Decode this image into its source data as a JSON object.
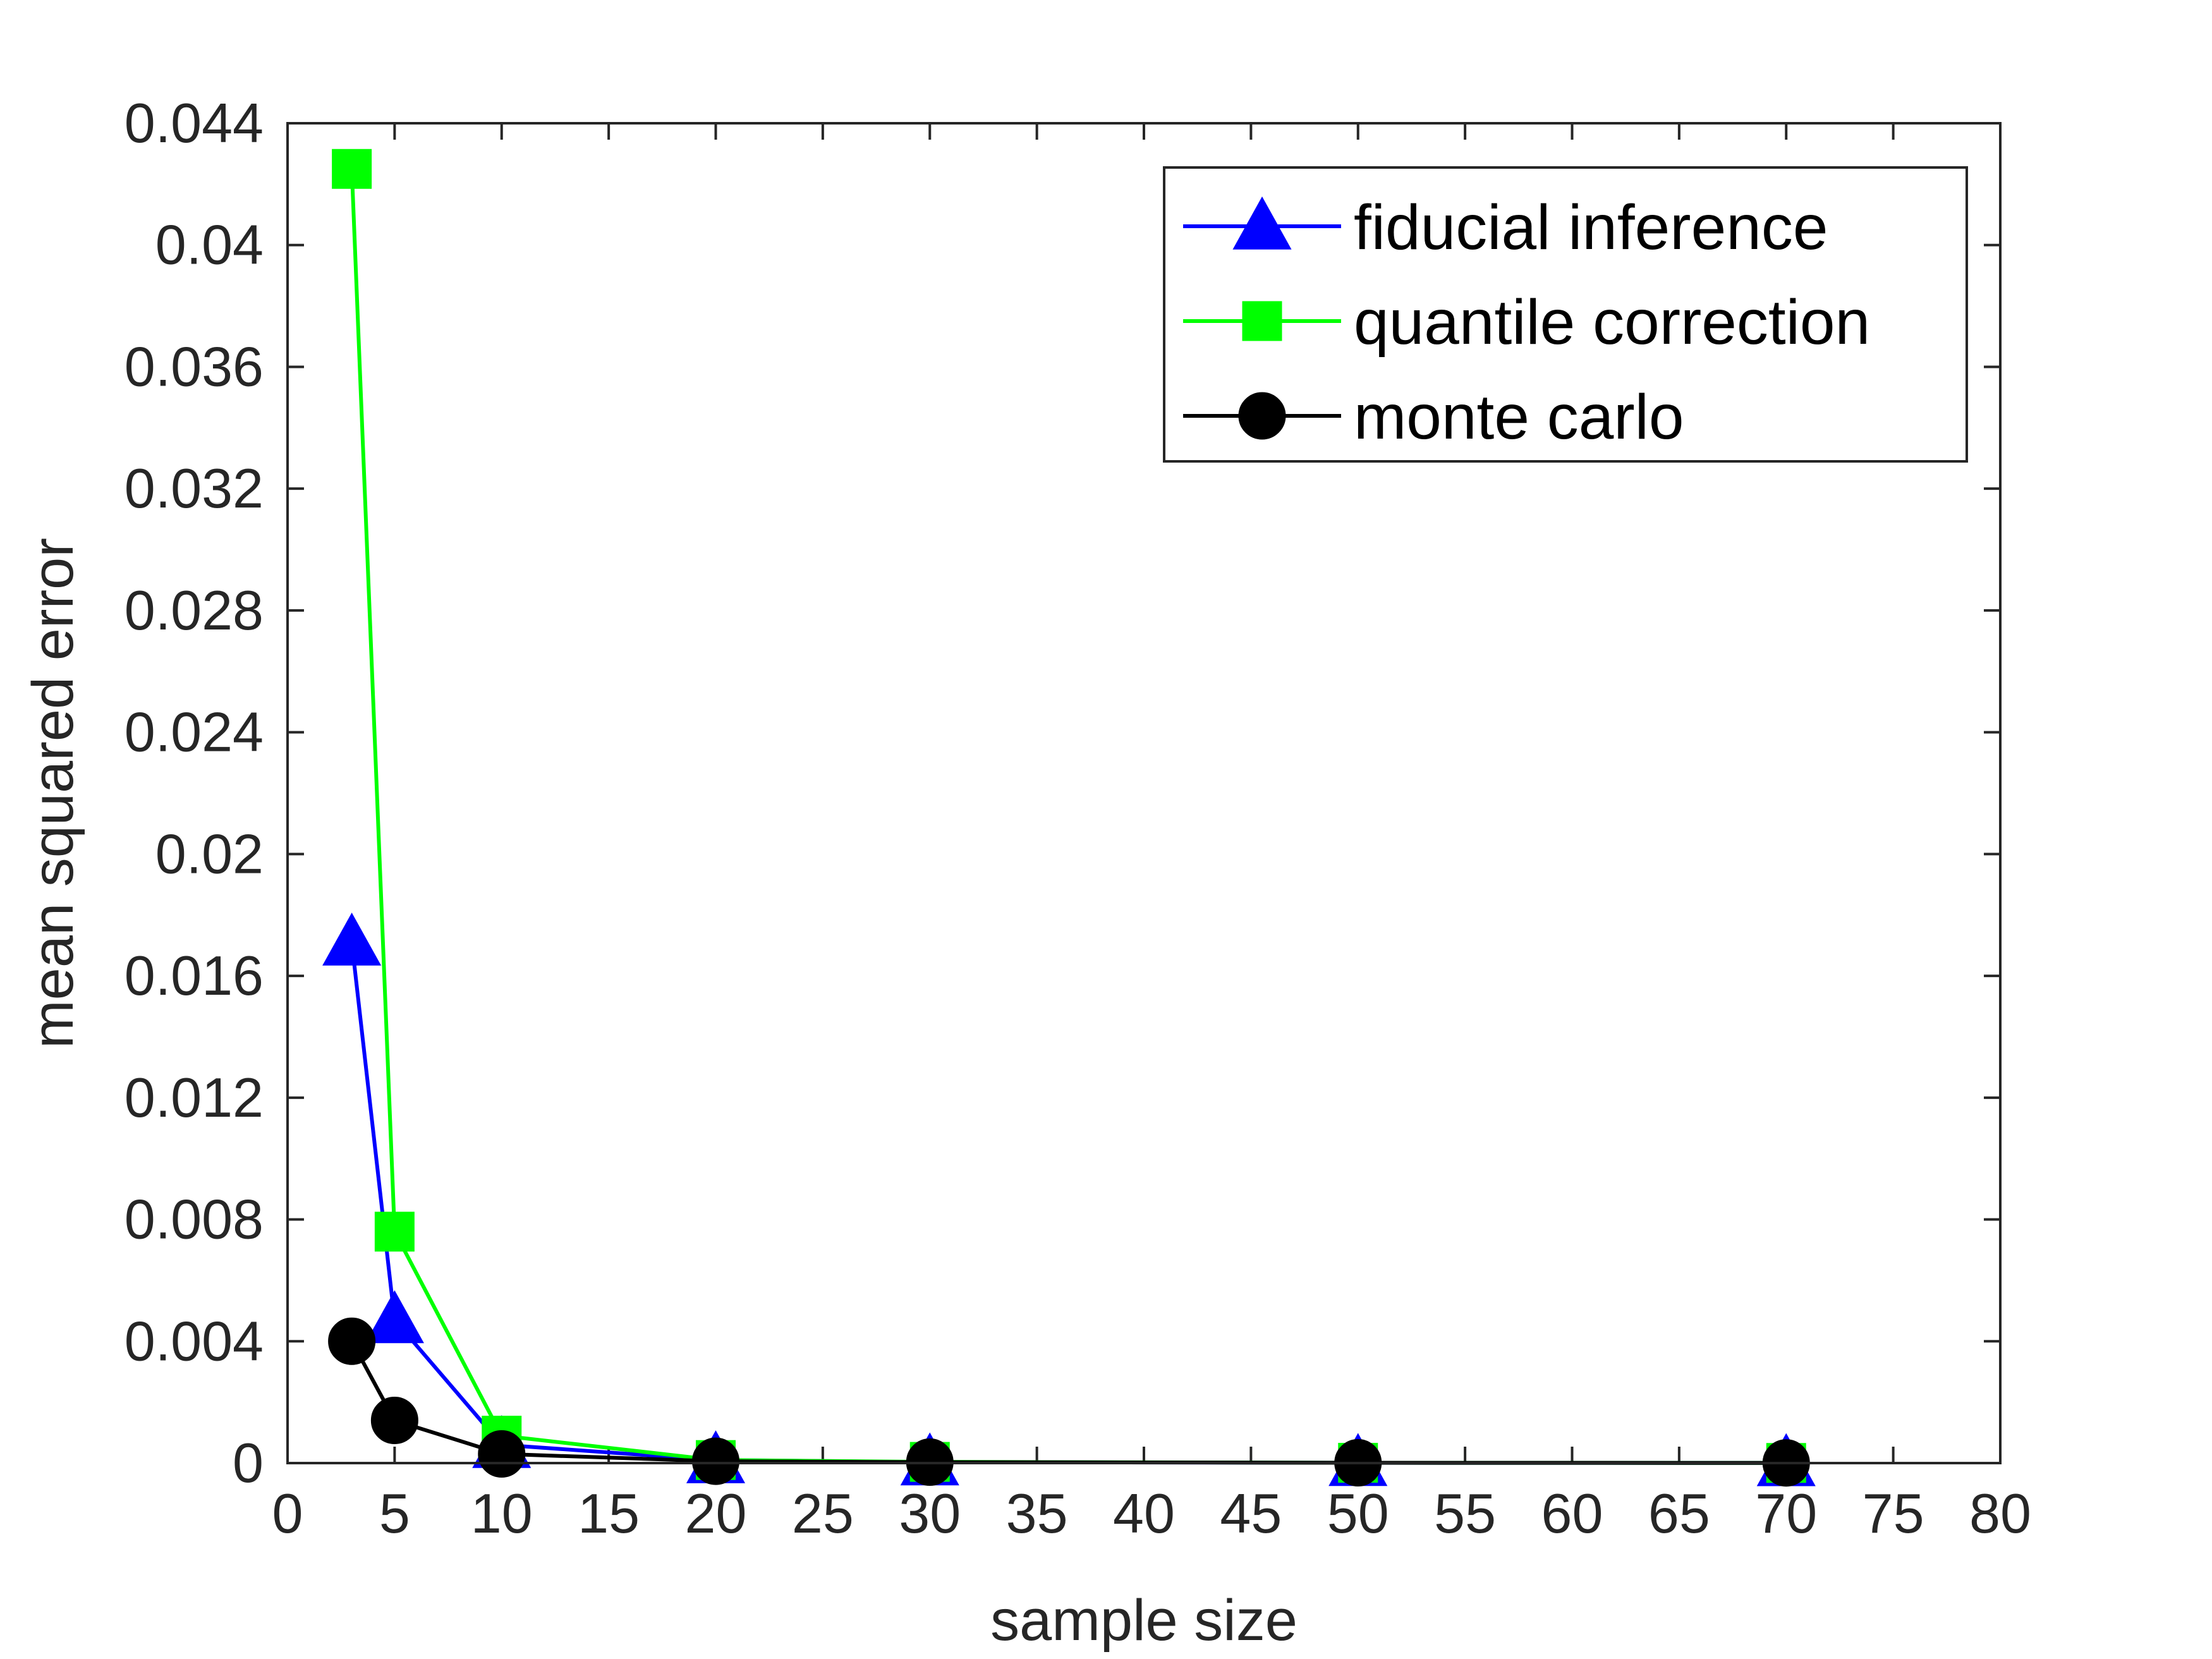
{
  "chart_data": {
    "type": "line",
    "title": "",
    "xlabel": "sample size",
    "ylabel": "mean squared error",
    "xlim": [
      0,
      80
    ],
    "ylim": [
      0,
      0.044
    ],
    "xticks": [
      "0",
      "5",
      "10",
      "15",
      "20",
      "25",
      "30",
      "35",
      "40",
      "45",
      "50",
      "55",
      "60",
      "65",
      "70",
      "75",
      "80"
    ],
    "yticks": [
      "0",
      "0.004",
      "0.008",
      "0.012",
      "0.016",
      "0.02",
      "0.024",
      "0.028",
      "0.032",
      "0.036",
      "0.04",
      "0.044"
    ],
    "grid": false,
    "legend_position": "top-right",
    "x": [
      3,
      5,
      10,
      20,
      30,
      50,
      70
    ],
    "series": [
      {
        "name": "fiducial inference",
        "values": [
          0.0171,
          0.0047,
          0.0006,
          0.0001,
          3e-05,
          1e-05,
          5e-06
        ],
        "color": "#0000ff",
        "marker": "triangle"
      },
      {
        "name": "quantile correction",
        "values": [
          0.0425,
          0.0076,
          0.0009,
          0.0001,
          4e-05,
          1e-05,
          5e-06
        ],
        "color": "#00ff00",
        "marker": "square"
      },
      {
        "name": "monte carlo",
        "values": [
          0.004,
          0.0014,
          0.0003,
          6e-05,
          3e-05,
          1e-05,
          5e-06
        ],
        "color": "#000000",
        "marker": "circle"
      }
    ]
  }
}
